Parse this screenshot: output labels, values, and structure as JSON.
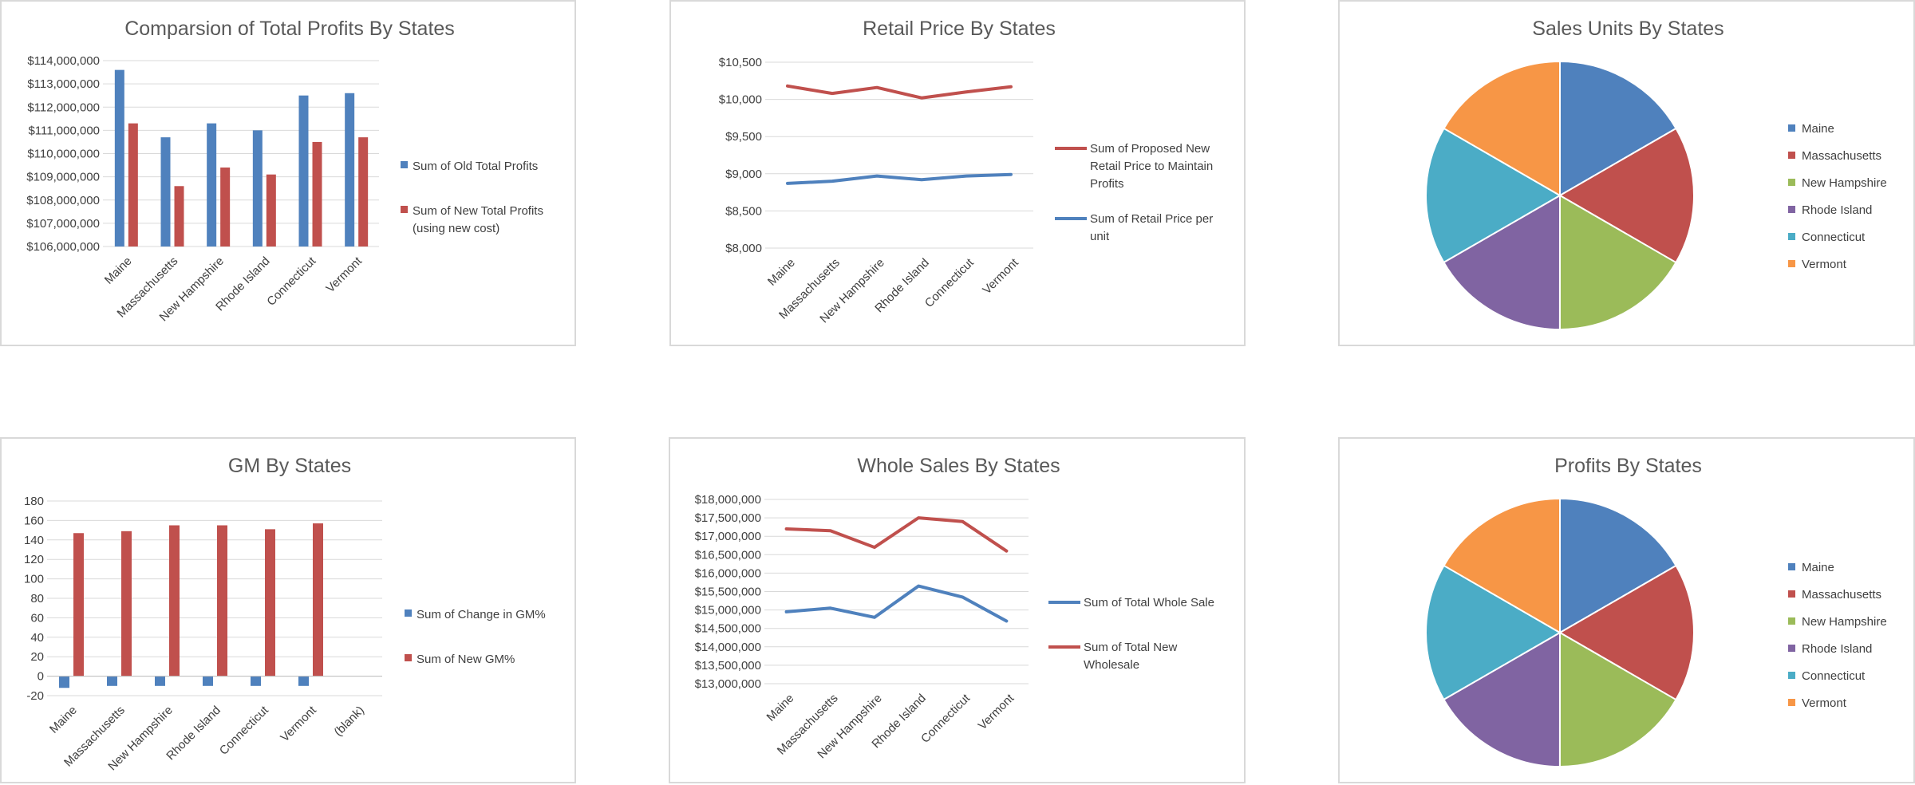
{
  "colors": {
    "blue": "#4f81bd",
    "red": "#c0504d",
    "green": "#9bbb59",
    "purple": "#8064a2",
    "teal": "#4bacc6",
    "orange": "#f79646",
    "grid": "#d9d9d9",
    "text": "#404040",
    "title": "#595959"
  },
  "chart_data": [
    {
      "id": "profits_bar",
      "type": "bar",
      "title": "Comparsion of Total Profits By States",
      "categories": [
        "Maine",
        "Massachusetts",
        "New Hampshire",
        "Rhode Island",
        "Connecticut",
        "Vermont"
      ],
      "series": [
        {
          "name": "Sum of Old Total Profits",
          "color": "#4f81bd",
          "values": [
            113600000,
            110700000,
            111300000,
            111000000,
            112500000,
            112600000
          ]
        },
        {
          "name": "Sum of New Total Profits (using new cost)",
          "color": "#c0504d",
          "values": [
            111300000,
            108600000,
            109400000,
            109100000,
            110500000,
            110700000
          ]
        }
      ],
      "ylim": [
        106000000,
        114000000
      ],
      "yticks": [
        106000000,
        107000000,
        108000000,
        109000000,
        110000000,
        111000000,
        112000000,
        113000000,
        114000000
      ],
      "ytick_labels": [
        "$106,000,000",
        "$107,000,000",
        "$108,000,000",
        "$109,000,000",
        "$110,000,000",
        "$111,000,000",
        "$112,000,000",
        "$113,000,000",
        "$114,000,000"
      ],
      "legend": "right"
    },
    {
      "id": "retail_line",
      "type": "line",
      "title": "Retail Price By States",
      "categories": [
        "Maine",
        "Massachusetts",
        "New Hampshire",
        "Rhode Island",
        "Connecticut",
        "Vermont"
      ],
      "series": [
        {
          "name": "Sum of Proposed New Retail Price to Maintain Profits",
          "color": "#c0504d",
          "values": [
            10180,
            10080,
            10160,
            10020,
            10100,
            10170
          ]
        },
        {
          "name": "Sum of Retail Price per unit",
          "color": "#4f81bd",
          "values": [
            8870,
            8900,
            8970,
            8920,
            8970,
            8990
          ]
        }
      ],
      "ylim": [
        8000,
        10500
      ],
      "yticks": [
        8000,
        8500,
        9000,
        9500,
        10000,
        10500
      ],
      "ytick_labels": [
        "$8,000",
        "$8,500",
        "$9,000",
        "$9,500",
        "$10,000",
        "$10,500"
      ],
      "legend": "right"
    },
    {
      "id": "units_pie",
      "type": "pie",
      "title": "Sales Units By States",
      "labels": [
        "Maine",
        "Massachusetts",
        "New Hampshire",
        "Rhode Island",
        "Connecticut",
        "Vermont"
      ],
      "colors": [
        "#4f81bd",
        "#c0504d",
        "#9bbb59",
        "#8064a2",
        "#4bacc6",
        "#f79646"
      ],
      "values": [
        16.67,
        16.67,
        16.67,
        16.67,
        16.66,
        16.66
      ],
      "legend": "right"
    },
    {
      "id": "gm_bar",
      "type": "bar",
      "title": "GM By States",
      "categories": [
        "Maine",
        "Massachusetts",
        "New Hampshire",
        "Rhode Island",
        "Connecticut",
        "Vermont",
        "(blank)"
      ],
      "series": [
        {
          "name": "Sum of Change in GM%",
          "color": "#4f81bd",
          "values": [
            -12,
            -10,
            -10,
            -10,
            -10,
            -10,
            null
          ]
        },
        {
          "name": "Sum of New GM%",
          "color": "#c0504d",
          "values": [
            147,
            149,
            155,
            155,
            151,
            157,
            null
          ]
        }
      ],
      "ylim": [
        -20,
        180
      ],
      "yticks": [
        -20,
        0,
        20,
        40,
        60,
        80,
        100,
        120,
        140,
        160,
        180
      ],
      "ytick_labels": [
        "-20",
        "0",
        "20",
        "40",
        "60",
        "80",
        "100",
        "120",
        "140",
        "160",
        "180"
      ],
      "legend": "right"
    },
    {
      "id": "wholesale_line",
      "type": "line",
      "title": "Whole Sales By States",
      "categories": [
        "Maine",
        "Massachusetts",
        "New Hampshire",
        "Rhode Island",
        "Connecticut",
        "Vermont"
      ],
      "series": [
        {
          "name": "Sum of Total Whole Sale",
          "color": "#4f81bd",
          "values": [
            14950000,
            15050000,
            14800000,
            15650000,
            15350000,
            14700000
          ]
        },
        {
          "name": "Sum of Total New Wholesale",
          "color": "#c0504d",
          "values": [
            17200000,
            17150000,
            16700000,
            17500000,
            17400000,
            16600000
          ]
        }
      ],
      "ylim": [
        13000000,
        18000000
      ],
      "yticks": [
        13000000,
        13500000,
        14000000,
        14500000,
        15000000,
        15500000,
        16000000,
        16500000,
        17000000,
        17500000,
        18000000
      ],
      "ytick_labels": [
        "$13,000,000",
        "$13,500,000",
        "$14,000,000",
        "$14,500,000",
        "$15,000,000",
        "$15,500,000",
        "$16,000,000",
        "$16,500,000",
        "$17,000,000",
        "$17,500,000",
        "$18,000,000"
      ],
      "legend": "right"
    },
    {
      "id": "profits_pie",
      "type": "pie",
      "title": "Profits By States",
      "labels": [
        "Maine",
        "Massachusetts",
        "New Hampshire",
        "Rhode Island",
        "Connecticut",
        "Vermont"
      ],
      "colors": [
        "#4f81bd",
        "#c0504d",
        "#9bbb59",
        "#8064a2",
        "#4bacc6",
        "#f79646"
      ],
      "values": [
        16.67,
        16.67,
        16.67,
        16.67,
        16.66,
        16.66
      ],
      "legend": "right"
    }
  ]
}
